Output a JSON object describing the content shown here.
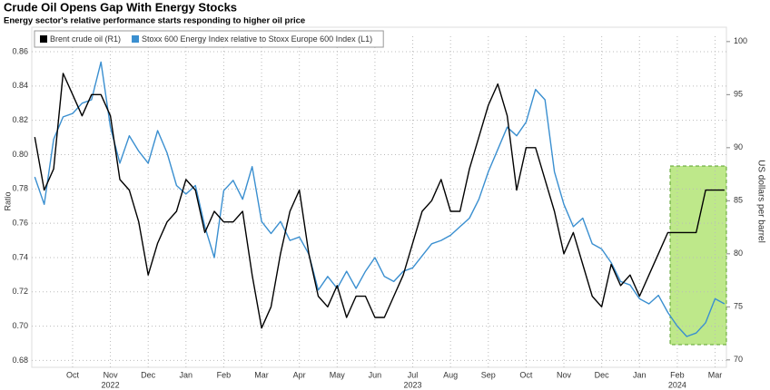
{
  "chart_data": {
    "type": "line",
    "title": "Crude Oil Opens Gap With Energy Stocks",
    "subtitle": "Energy sector's relative performance starts responding to higher oil price",
    "ylabel": "Ratio",
    "y2label": "US dollars per barrel",
    "x": [
      0.5,
      0.75,
      1,
      1.25,
      1.5,
      1.75,
      2,
      2.25,
      2.5,
      2.75,
      3,
      3.25,
      3.5,
      3.75,
      4,
      4.25,
      4.5,
      4.75,
      5,
      5.25,
      5.5,
      5.75,
      6,
      6.25,
      6.5,
      6.75,
      7,
      7.25,
      7.5,
      7.75,
      8,
      8.25,
      8.5,
      8.75,
      9,
      9.25,
      9.5,
      9.75,
      10,
      10.25,
      10.5,
      10.75,
      11,
      11.25,
      11.5,
      11.75,
      12,
      12.25,
      12.5,
      12.75,
      13,
      13.25,
      13.5,
      13.75,
      14,
      14.25,
      14.5,
      14.75,
      15,
      15.25,
      15.5,
      15.75,
      16,
      16.25,
      16.5,
      16.75,
      17,
      17.25,
      17.5,
      17.75,
      18,
      18.25,
      18.5,
      18.75
    ],
    "series": [
      {
        "name": "Brent crude oil (R1)",
        "color": "#000000",
        "axis": "y2",
        "values": [
          91,
          86,
          88,
          97,
          95,
          93,
          95,
          95,
          93,
          87,
          86,
          83,
          78,
          81,
          83,
          84,
          87,
          86,
          82,
          84,
          83,
          83,
          84,
          78,
          73,
          75,
          80,
          84,
          86,
          80,
          76,
          75,
          77,
          74,
          76,
          76,
          74,
          74,
          76,
          78,
          81,
          84,
          85,
          87,
          84,
          84,
          88,
          91,
          94,
          96,
          93,
          86,
          90,
          90,
          87,
          84,
          80,
          82,
          79,
          76,
          75,
          79,
          77,
          78,
          76,
          78,
          80,
          82,
          82,
          82,
          82,
          86,
          86,
          86
        ]
      },
      {
        "name": "Stoxx 600 Energy Index relative to Stoxx Europe 600 Index (L1)",
        "color": "#3a8fd0",
        "values": [
          0.787,
          0.771,
          0.809,
          0.822,
          0.824,
          0.83,
          0.832,
          0.854,
          0.816,
          0.795,
          0.811,
          0.802,
          0.795,
          0.814,
          0.801,
          0.782,
          0.777,
          0.782,
          0.758,
          0.74,
          0.779,
          0.785,
          0.774,
          0.793,
          0.761,
          0.754,
          0.761,
          0.75,
          0.752,
          0.742,
          0.721,
          0.729,
          0.722,
          0.732,
          0.722,
          0.732,
          0.74,
          0.729,
          0.726,
          0.732,
          0.734,
          0.741,
          0.748,
          0.75,
          0.753,
          0.758,
          0.763,
          0.774,
          0.79,
          0.803,
          0.816,
          0.811,
          0.819,
          0.838,
          0.832,
          0.79,
          0.771,
          0.758,
          0.763,
          0.748,
          0.745,
          0.737,
          0.726,
          0.724,
          0.716,
          0.713,
          0.718,
          0.708,
          0.7,
          0.694,
          0.696,
          0.702,
          0.716,
          0.713
        ]
      }
    ],
    "xlim": [
      0.42,
      18.8
    ],
    "xticks": [
      {
        "value": 1.5,
        "label": "Oct"
      },
      {
        "value": 2.5,
        "label": "Nov"
      },
      {
        "value": 3.5,
        "label": "Dec"
      },
      {
        "value": 4.5,
        "label": "Jan"
      },
      {
        "value": 5.5,
        "label": "Feb"
      },
      {
        "value": 6.5,
        "label": "Mar"
      },
      {
        "value": 7.5,
        "label": "Apr"
      },
      {
        "value": 8.5,
        "label": "May"
      },
      {
        "value": 9.5,
        "label": "Jun"
      },
      {
        "value": 10.5,
        "label": "Jul"
      },
      {
        "value": 11.5,
        "label": "Aug"
      },
      {
        "value": 12.5,
        "label": "Sep"
      },
      {
        "value": 13.5,
        "label": "Oct"
      },
      {
        "value": 14.5,
        "label": "Nov"
      },
      {
        "value": 15.5,
        "label": "Dec"
      },
      {
        "value": 16.5,
        "label": "Jan"
      },
      {
        "value": 17.5,
        "label": "Feb"
      },
      {
        "value": 18.5,
        "label": "Mar"
      }
    ],
    "year_ticks": [
      {
        "value": 2.5,
        "label": "2022"
      },
      {
        "value": 10.5,
        "label": "2023"
      },
      {
        "value": 17.5,
        "label": "2024"
      }
    ],
    "ylim": [
      0.676,
      0.869
    ],
    "yticks": [
      {
        "value": 0.68,
        "label": "0.68"
      },
      {
        "value": 0.7,
        "label": "0.70"
      },
      {
        "value": 0.72,
        "label": "0.72"
      },
      {
        "value": 0.74,
        "label": "0.74"
      },
      {
        "value": 0.76,
        "label": "0.76"
      },
      {
        "value": 0.78,
        "label": "0.78"
      },
      {
        "value": 0.8,
        "label": "0.80"
      },
      {
        "value": 0.82,
        "label": "0.82"
      },
      {
        "value": 0.84,
        "label": "0.84"
      },
      {
        "value": 0.86,
        "label": "0.86"
      }
    ],
    "y2lim": [
      69.3,
      100.5
    ],
    "y2ticks": [
      70,
      75,
      80,
      85,
      90,
      95,
      100
    ],
    "grid": true
  }
}
